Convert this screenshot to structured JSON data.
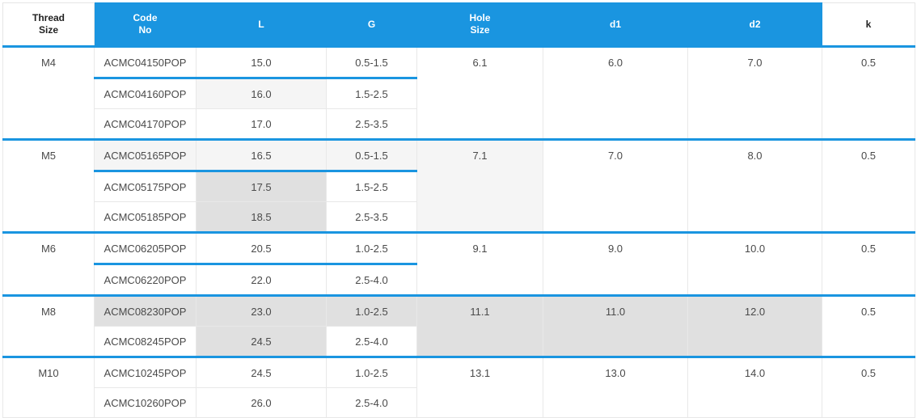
{
  "headers": [
    {
      "line1": "Thread",
      "line2": "Size"
    },
    {
      "line1": "Code",
      "line2": "No"
    },
    {
      "line1": "L",
      "line2": ""
    },
    {
      "line1": "G",
      "line2": ""
    },
    {
      "line1": "Hole",
      "line2": "Size"
    },
    {
      "line1": "d1",
      "line2": ""
    },
    {
      "line1": "d2",
      "line2": ""
    },
    {
      "line1": "k",
      "line2": ""
    }
  ],
  "groups": [
    {
      "thread": "M4",
      "hole": "6.1",
      "d1": "6.0",
      "d2": "7.0",
      "k": "0.5",
      "rows": [
        {
          "code": "ACMC04150POP",
          "L": "15.0",
          "G": "0.5-1.5"
        },
        {
          "code": "ACMC04160POP",
          "L": "16.0",
          "G": "1.5-2.5"
        },
        {
          "code": "ACMC04170POP",
          "L": "17.0",
          "G": "2.5-3.5"
        }
      ]
    },
    {
      "thread": "M5",
      "hole": "7.1",
      "d1": "7.0",
      "d2": "8.0",
      "k": "0.5",
      "rows": [
        {
          "code": "ACMC05165POP",
          "L": "16.5",
          "G": "0.5-1.5"
        },
        {
          "code": "ACMC05175POP",
          "L": "17.5",
          "G": "1.5-2.5"
        },
        {
          "code": "ACMC05185POP",
          "L": "18.5",
          "G": "2.5-3.5"
        }
      ]
    },
    {
      "thread": "M6",
      "hole": "9.1",
      "d1": "9.0",
      "d2": "10.0",
      "k": "0.5",
      "rows": [
        {
          "code": "ACMC06205POP",
          "L": "20.5",
          "G": "1.0-2.5"
        },
        {
          "code": "ACMC06220POP",
          "L": "22.0",
          "G": "2.5-4.0"
        }
      ]
    },
    {
      "thread": "M8",
      "hole": "11.1",
      "d1": "11.0",
      "d2": "12.0",
      "k": "0.5",
      "rows": [
        {
          "code": "ACMC08230POP",
          "L": "23.0",
          "G": "1.0-2.5"
        },
        {
          "code": "ACMC08245POP",
          "L": "24.5",
          "G": "2.5-4.0"
        }
      ]
    },
    {
      "thread": "M10",
      "hole": "13.1",
      "d1": "13.0",
      "d2": "14.0",
      "k": "0.5",
      "rows": [
        {
          "code": "ACMC10245POP",
          "L": "24.5",
          "G": "1.0-2.5"
        },
        {
          "code": "ACMC10260POP",
          "L": "26.0",
          "G": "2.5-4.0"
        }
      ]
    }
  ]
}
